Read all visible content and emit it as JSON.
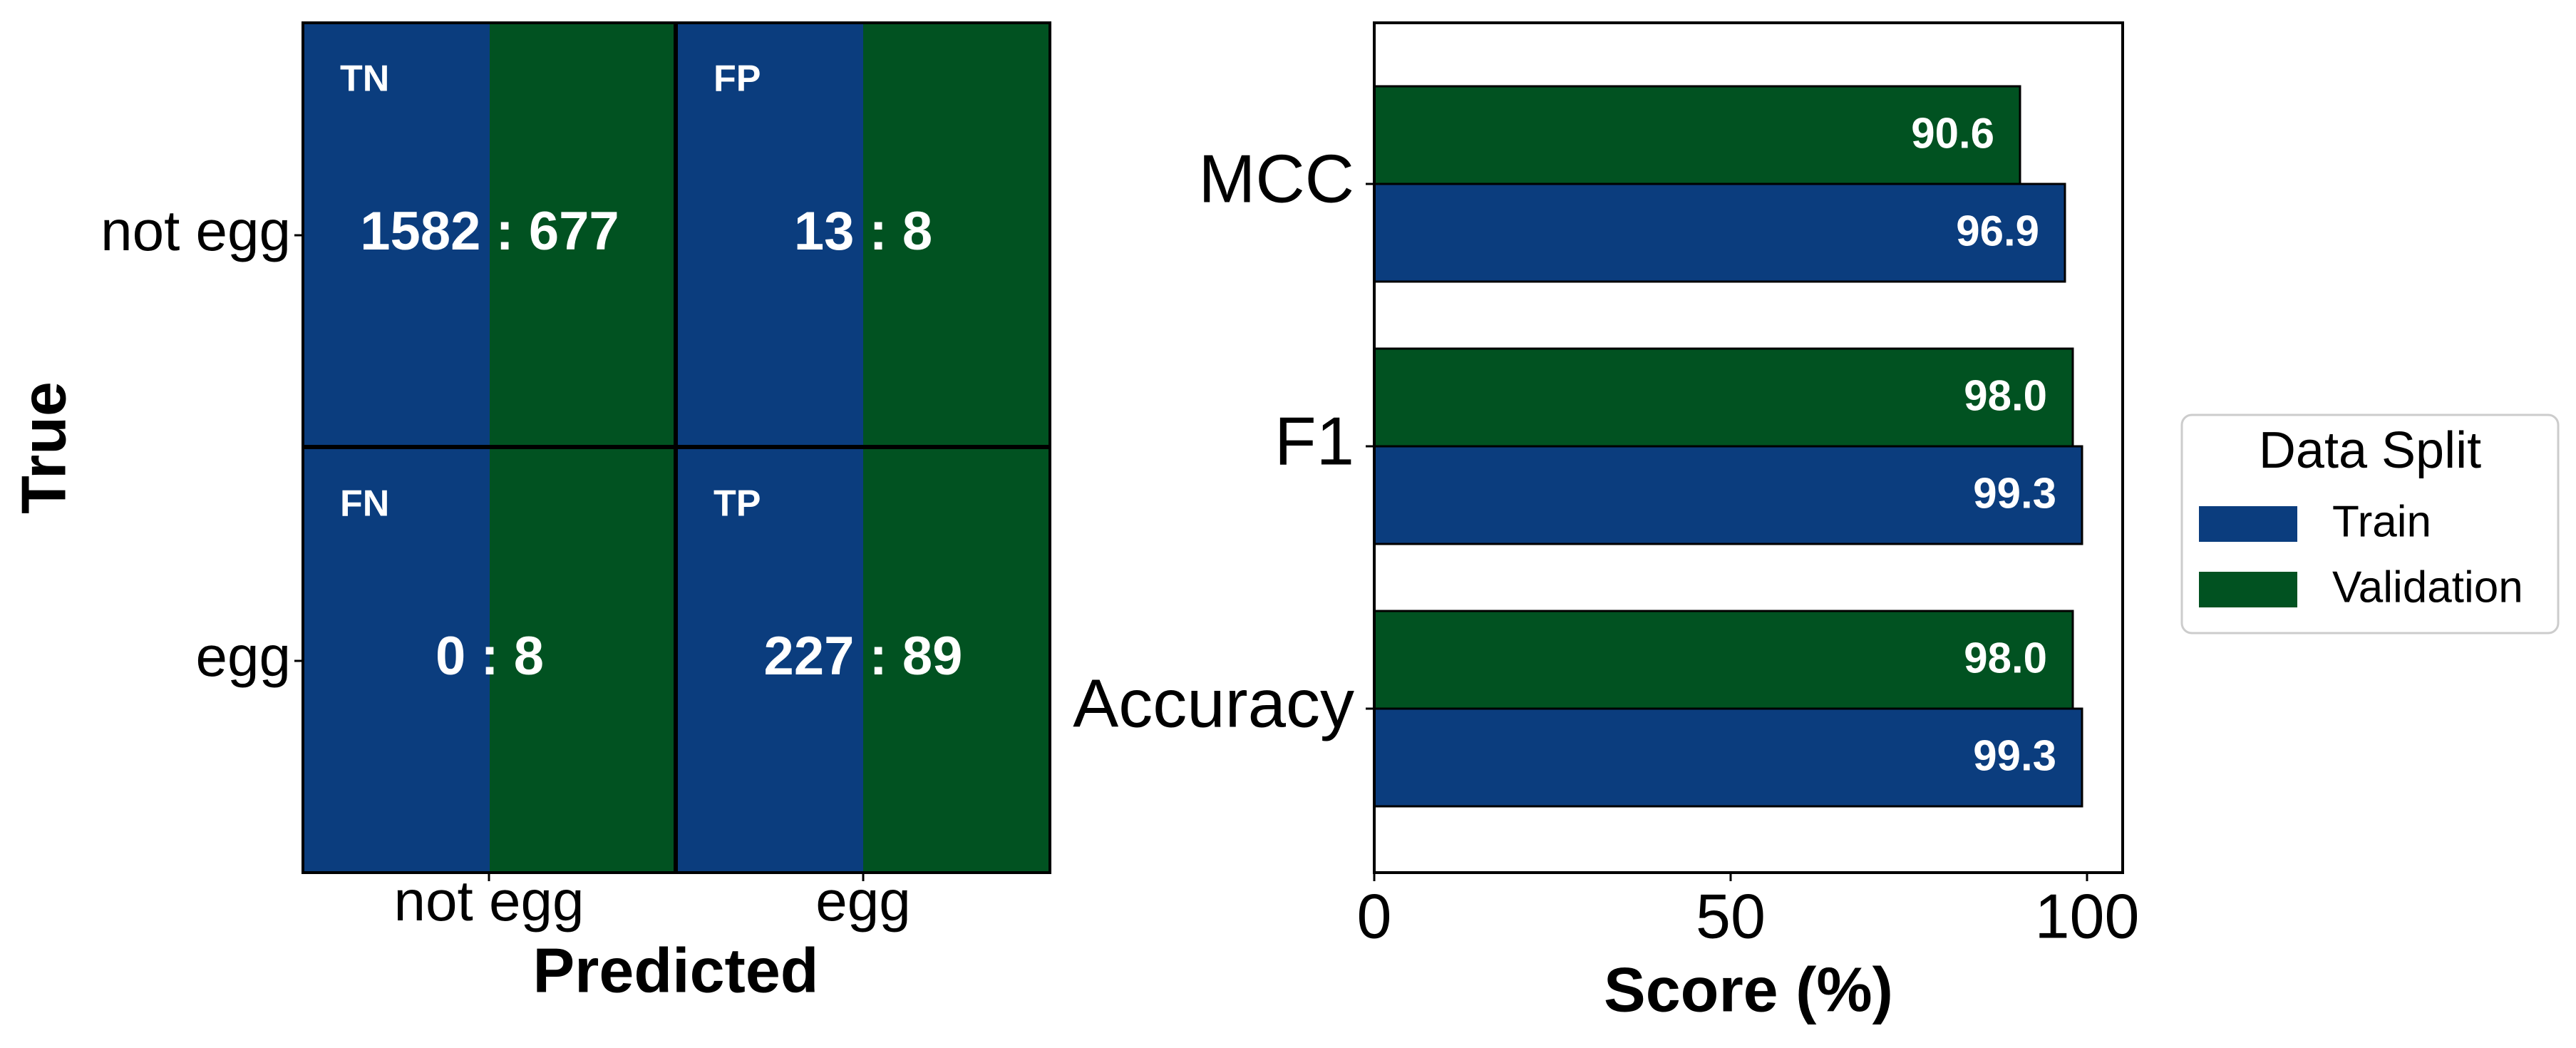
{
  "colors": {
    "train": "#0b3d7e",
    "validation": "#015221",
    "frame": "#000000",
    "cell_text": "#ffffff"
  },
  "chart_data": [
    {
      "type": "heatmap",
      "xlabel": "Predicted",
      "ylabel": "True",
      "x_categories": [
        "not egg",
        "egg"
      ],
      "y_categories": [
        "not egg",
        "egg"
      ],
      "cells": [
        {
          "row": 0,
          "col": 0,
          "label": "TN",
          "text": "1582 : 677",
          "train": 1582,
          "validation": 677
        },
        {
          "row": 0,
          "col": 1,
          "label": "FP",
          "text": "13 : 8",
          "train": 13,
          "validation": 8
        },
        {
          "row": 1,
          "col": 0,
          "label": "FN",
          "text": "0 : 8",
          "train": 0,
          "validation": 8
        },
        {
          "row": 1,
          "col": 1,
          "label": "TP",
          "text": "227 : 89",
          "train": 227,
          "validation": 89
        }
      ],
      "series": [
        {
          "name": "Train",
          "color": "#0b3d7e"
        },
        {
          "name": "Validation",
          "color": "#015221"
        }
      ]
    },
    {
      "type": "bar",
      "orientation": "horizontal",
      "categories": [
        "MCC",
        "F1",
        "Accuracy"
      ],
      "series": [
        {
          "name": "Train",
          "color": "#0b3d7e",
          "values": [
            96.9,
            99.3,
            99.3
          ]
        },
        {
          "name": "Validation",
          "color": "#015221",
          "values": [
            90.6,
            98.0,
            98.0
          ]
        }
      ],
      "xlabel": "Score (%)",
      "ylabel": "",
      "xlim": [
        0,
        105
      ],
      "xticks": [
        0,
        50,
        100
      ],
      "grid": false,
      "legend": {
        "title": "Data Split",
        "placement": "right",
        "entries": [
          "Train",
          "Validation"
        ]
      }
    }
  ]
}
